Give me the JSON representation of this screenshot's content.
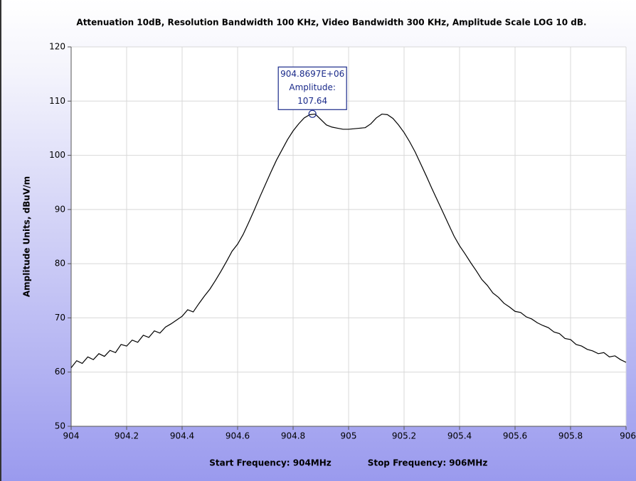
{
  "chart_data": {
    "type": "line",
    "title": "Attenuation 10dB, Resolution Bandwidth 100 KHz, Video Bandwidth 300 KHz, Amplitude Scale LOG 10 dB.",
    "y_label": "Amplitude Units, dBuV/m",
    "footer": [
      "Start Frequency: 904MHz",
      "Stop Frequency: 906MHz"
    ],
    "x": [
      904,
      904.02,
      904.04,
      904.06,
      904.08,
      904.1,
      904.12,
      904.14,
      904.16,
      904.18,
      904.2,
      904.22,
      904.24,
      904.26,
      904.28,
      904.3,
      904.32,
      904.34,
      904.36,
      904.38,
      904.4,
      904.42,
      904.44,
      904.46,
      904.48,
      904.5,
      904.52,
      904.54,
      904.56,
      904.58,
      904.6,
      904.62,
      904.64,
      904.66,
      904.68,
      904.7,
      904.72,
      904.74,
      904.76,
      904.78,
      904.8,
      904.82,
      904.84,
      904.86,
      904.88,
      904.9,
      904.92,
      904.94,
      904.96,
      904.98,
      905,
      905.02,
      905.04,
      905.06,
      905.08,
      905.1,
      905.12,
      905.14,
      905.16,
      905.18,
      905.2,
      905.22,
      905.24,
      905.26,
      905.28,
      905.3,
      905.32,
      905.34,
      905.36,
      905.38,
      905.4,
      905.42,
      905.44,
      905.46,
      905.48,
      905.5,
      905.52,
      905.54,
      905.56,
      905.58,
      905.6,
      905.62,
      905.64,
      905.66,
      905.68,
      905.7,
      905.72,
      905.74,
      905.76,
      905.78,
      905.8,
      905.82,
      905.84,
      905.86,
      905.88,
      905.9,
      905.92,
      905.94,
      905.96,
      905.98,
      906
    ],
    "series": [
      {
        "color": "#000000",
        "values": [
          60.8,
          62.1,
          61.6,
          62.8,
          62.3,
          63.4,
          62.9,
          64.0,
          63.6,
          65.1,
          64.8,
          65.9,
          65.5,
          66.8,
          66.4,
          67.6,
          67.2,
          68.3,
          68.9,
          69.6,
          70.3,
          71.5,
          71.1,
          72.6,
          74.0,
          75.3,
          76.9,
          78.6,
          80.4,
          82.3,
          83.6,
          85.4,
          87.6,
          89.9,
          92.3,
          94.6,
          96.9,
          99.1,
          101.0,
          102.9,
          104.5,
          105.8,
          106.9,
          107.5,
          107.6,
          106.6,
          105.6,
          105.2,
          105.0,
          104.8,
          104.8,
          104.9,
          105.0,
          105.1,
          105.8,
          106.9,
          107.6,
          107.5,
          106.8,
          105.6,
          104.2,
          102.5,
          100.6,
          98.4,
          96.2,
          93.9,
          91.7,
          89.5,
          87.3,
          85.1,
          83.3,
          81.8,
          80.2,
          78.7,
          77.1,
          76.0,
          74.6,
          73.8,
          72.7,
          72.0,
          71.2,
          71.0,
          70.2,
          69.8,
          69.1,
          68.6,
          68.2,
          67.4,
          67.1,
          66.2,
          66.0,
          65.1,
          64.8,
          64.2,
          63.9,
          63.4,
          63.6,
          62.8,
          63.0,
          62.3,
          61.8
        ]
      }
    ],
    "marker": {
      "x": 904.8697,
      "y": 107.64,
      "lines": [
        "904.8697E+06",
        "Amplitude:",
        "107.64"
      ]
    },
    "xlim": [
      904,
      906
    ],
    "xticks": [
      904,
      904.2,
      904.4,
      904.6,
      904.8,
      905,
      905.2,
      905.4,
      905.6,
      905.8,
      906
    ],
    "ylim": [
      50,
      120
    ],
    "yticks": [
      50,
      60,
      70,
      80,
      90,
      100,
      110,
      120
    ],
    "grid": true
  }
}
